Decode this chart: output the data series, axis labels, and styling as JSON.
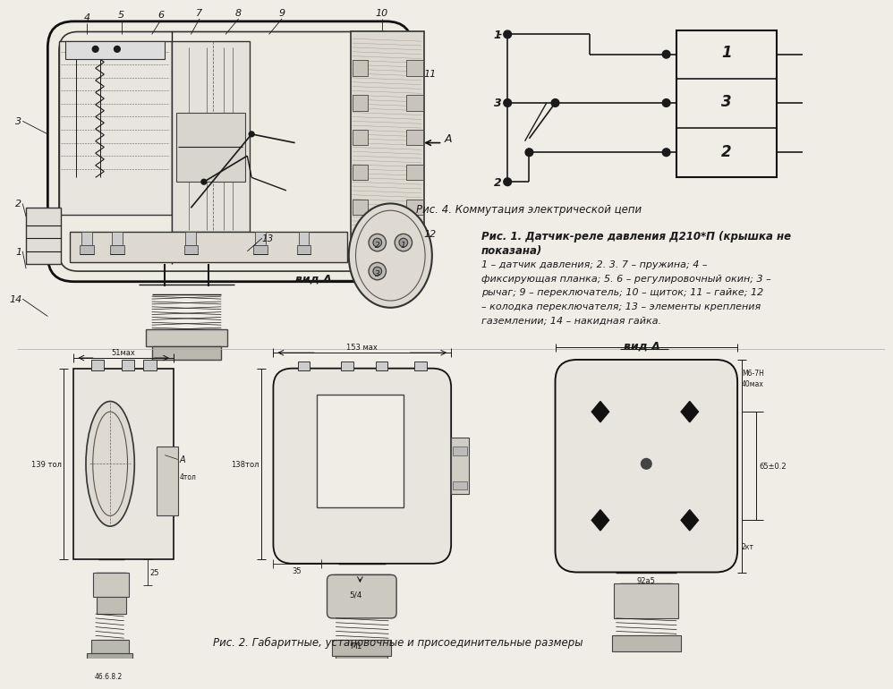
{
  "background_color": "#f0ede6",
  "line_color": "#1a1a1a",
  "text_color": "#1a1a1a",
  "fig_caption_4": "Рис. 4. Коммутация электрической цепи",
  "fig_caption_1_line1": "Рис. 1. Датчик-реле давления Д210*П (крышка не",
  "fig_caption_1_line2": "показана)",
  "fig_caption_1_line3": "1 – датчик давления; 2. 3. 7 – пружина; 4 –",
  "fig_caption_1_line4": "фиксирующая планка; 5. 6 – регулировочный окин; 3 –",
  "fig_caption_1_line5": "рычаг; 9 – переключатель; 10 – щиток; 11 – гайке; 12",
  "fig_caption_1_line6": "– колодка переключателя; 13 – элементы крепления",
  "fig_caption_1_line7": "газемлении; 14 – накидная гайка.",
  "fig_caption_2": "Рис. 2. Габаритные, установочные и присоединительные размеры",
  "vid_A": "вид A",
  "label_4": "4",
  "label_5": "5",
  "label_6": "6",
  "label_7": "7",
  "label_8": "8",
  "label_9": "9",
  "label_10": "10",
  "label_11": "11",
  "label_12": "12",
  "label_13": "13",
  "label_14": "14",
  "label_3": "3",
  "label_2": "2",
  "label_1": "1",
  "label_A": "A",
  "label_vid_A": "вид A",
  "dim_51": "51мах",
  "dim_139": "139 тол",
  "dim_153": "153 мах",
  "dim_138": "138тол",
  "dim_25": "25",
  "dim_35": "35",
  "dim_4tol": "4тол",
  "dim_65": "65±0.2",
  "dim_92": "92а5",
  "dim_M6": "М6-7Н",
  "dim_40": "40мах",
  "dim_2kt": "2кт",
  "label_54": "5/4",
  "label_M1": "М1",
  "dim_46": "46.6.8.2"
}
